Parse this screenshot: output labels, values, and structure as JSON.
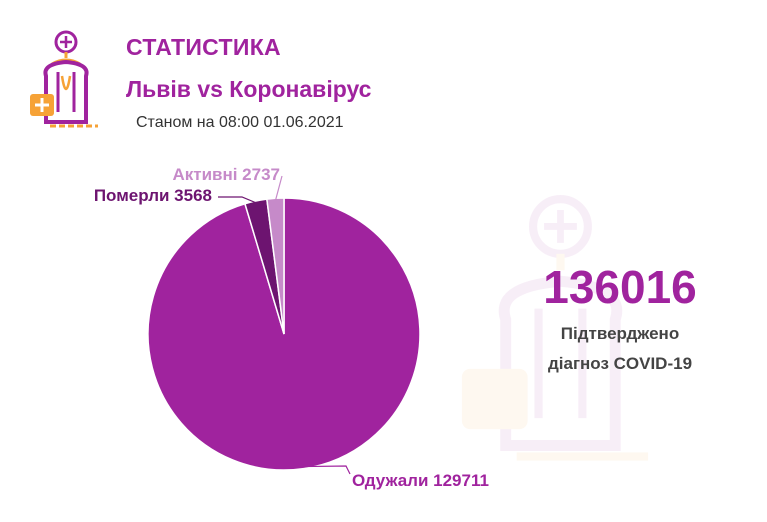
{
  "header": {
    "title": "СТАТИСТИКА",
    "subtitle": "Львів vs Коронавірус",
    "date": "Станом на 08:00 01.06.2021"
  },
  "summary": {
    "total": "136016",
    "caption_line1": "Підтверджено",
    "caption_line2": "діагноз COVID-19"
  },
  "icons": [
    "doctor-logo-icon",
    "doctor-watermark-icon"
  ],
  "colors": {
    "brand": "#a0239e",
    "recovered": "#a0239e",
    "deaths": "#6d1470",
    "active": "#c68ac9",
    "accent_orange": "#f6a236"
  },
  "chart_data": {
    "type": "pie",
    "title": "",
    "slices": [
      {
        "name": "Одужали",
        "value": 129711,
        "color": "#a0239e",
        "label": "Одужали 129711"
      },
      {
        "name": "Померли",
        "value": 3568,
        "color": "#6d1470",
        "label": "Померли 3568"
      },
      {
        "name": "Активні",
        "value": 2737,
        "color": "#c68ac9",
        "label": "Активні 2737"
      }
    ]
  }
}
